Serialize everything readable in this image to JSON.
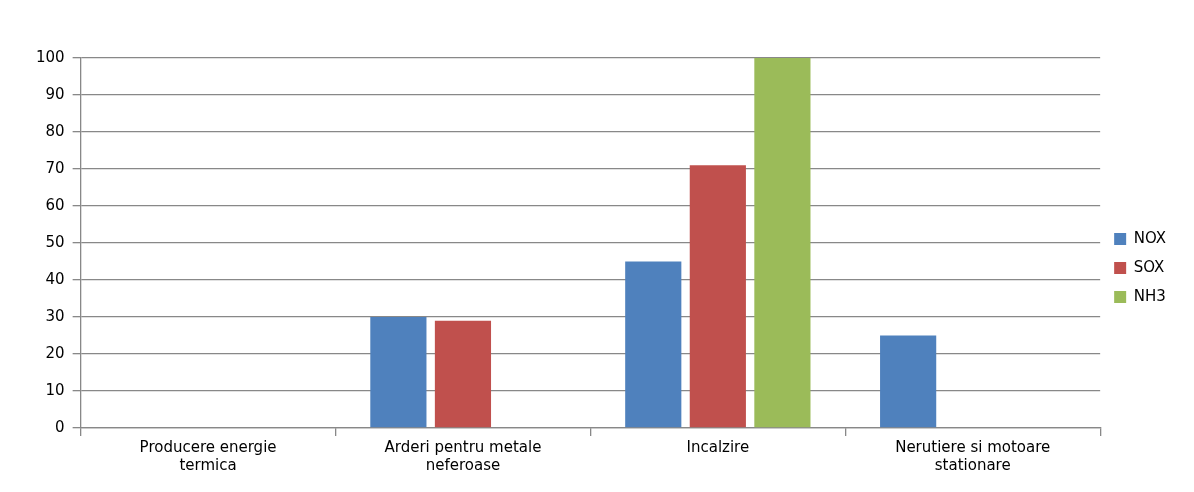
{
  "chart_data": {
    "type": "bar",
    "categories": [
      "Producere energie termica",
      "Arderi pentru metale neferoase",
      "Incalzire",
      "Nerutiere si motoare stationare"
    ],
    "series": [
      {
        "name": "NOX",
        "color": "#4f81bd",
        "values": [
          0,
          30,
          45,
          25
        ]
      },
      {
        "name": "SOX",
        "color": "#c0504d",
        "values": [
          0,
          29,
          71,
          0
        ]
      },
      {
        "name": "NH3",
        "color": "#9bbb59",
        "values": [
          0,
          0,
          100,
          0
        ]
      }
    ],
    "ylim": [
      0,
      100
    ],
    "yticks": [
      0,
      10,
      20,
      30,
      40,
      50,
      60,
      70,
      80,
      90,
      100
    ],
    "grid": "y",
    "legend": "right"
  }
}
